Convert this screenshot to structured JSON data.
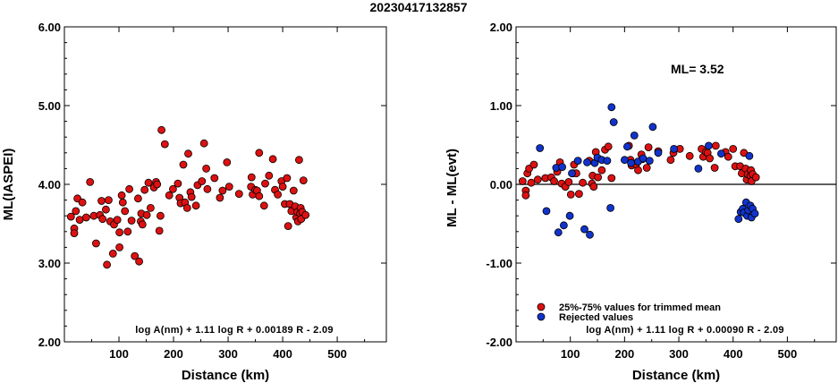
{
  "title": "20230417132857",
  "chart_data": [
    {
      "type": "scatter",
      "xlabel": "Distance (km)",
      "ylabel": "ML(IASPEI)",
      "xlim": [
        0,
        590
      ],
      "ylim": [
        2.0,
        6.0
      ],
      "xticks": [
        "100",
        "200",
        "300",
        "400",
        "500"
      ],
      "xtick_values": [
        100,
        200,
        300,
        400,
        500
      ],
      "yticks": [
        "2.00",
        "3.00",
        "4.00",
        "5.00",
        "6.00"
      ],
      "ytick_values": [
        2.0,
        3.0,
        4.0,
        5.0,
        6.0
      ],
      "grid": false,
      "annotation": "log A(nm) + 1.11 log R + 0.00189 R - 2.09",
      "series": [
        {
          "color": "#dd1111",
          "points": [
            [
              12,
              3.59
            ],
            [
              18,
              3.44
            ],
            [
              18,
              3.38
            ],
            [
              21,
              3.66
            ],
            [
              24,
              3.82
            ],
            [
              28,
              3.55
            ],
            [
              33,
              3.77
            ],
            [
              40,
              3.58
            ],
            [
              47,
              4.03
            ],
            [
              54,
              3.6
            ],
            [
              58,
              3.25
            ],
            [
              65,
              3.61
            ],
            [
              68,
              3.79
            ],
            [
              70,
              3.56
            ],
            [
              76,
              3.68
            ],
            [
              78,
              2.98
            ],
            [
              81,
              3.8
            ],
            [
              84,
              3.53
            ],
            [
              89,
              3.12
            ],
            [
              91,
              3.49
            ],
            [
              97,
              3.55
            ],
            [
              101,
              3.2
            ],
            [
              101,
              3.39
            ],
            [
              105,
              3.86
            ],
            [
              107,
              3.77
            ],
            [
              111,
              3.66
            ],
            [
              116,
              3.4
            ],
            [
              119,
              3.94
            ],
            [
              123,
              3.54
            ],
            [
              129,
              3.09
            ],
            [
              135,
              3.82
            ],
            [
              137,
              3.02
            ],
            [
              140,
              3.53
            ],
            [
              141,
              3.63
            ],
            [
              143,
              3.49
            ],
            [
              147,
              3.93
            ],
            [
              151,
              3.61
            ],
            [
              154,
              4.02
            ],
            [
              158,
              3.7
            ],
            [
              164,
              3.96
            ],
            [
              168,
              4.03
            ],
            [
              170,
              4.0
            ],
            [
              174,
              3.41
            ],
            [
              176,
              3.6
            ],
            [
              178,
              4.69
            ],
            [
              184,
              4.51
            ],
            [
              192,
              3.86
            ],
            [
              199,
              3.94
            ],
            [
              208,
              4.01
            ],
            [
              211,
              3.83
            ],
            [
              213,
              3.76
            ],
            [
              218,
              4.25
            ],
            [
              221,
              3.77
            ],
            [
              225,
              3.7
            ],
            [
              227,
              4.39
            ],
            [
              231,
              3.9
            ],
            [
              233,
              3.84
            ],
            [
              241,
              3.73
            ],
            [
              244,
              3.99
            ],
            [
              252,
              4.04
            ],
            [
              256,
              4.52
            ],
            [
              260,
              4.2
            ],
            [
              262,
              3.94
            ],
            [
              275,
              4.08
            ],
            [
              285,
              3.83
            ],
            [
              290,
              3.92
            ],
            [
              298,
              4.28
            ],
            [
              302,
              3.97
            ],
            [
              320,
              3.88
            ],
            [
              342,
              3.97
            ],
            [
              343,
              4.09
            ],
            [
              345,
              3.87
            ],
            [
              350,
              3.93
            ],
            [
              353,
              3.92
            ],
            [
              357,
              3.85
            ],
            [
              357,
              4.4
            ],
            [
              366,
              3.73
            ],
            [
              368,
              4.01
            ],
            [
              375,
              4.11
            ],
            [
              382,
              4.32
            ],
            [
              386,
              3.93
            ],
            [
              391,
              3.87
            ],
            [
              398,
              4.04
            ],
            [
              400,
              3.97
            ],
            [
              404,
              3.75
            ],
            [
              408,
              4.08
            ],
            [
              410,
              3.47
            ],
            [
              413,
              3.75
            ],
            [
              416,
              3.66
            ],
            [
              420,
              3.92
            ],
            [
              423,
              3.72
            ],
            [
              425,
              3.58
            ],
            [
              427,
              3.65
            ],
            [
              428,
              3.53
            ],
            [
              430,
              4.31
            ],
            [
              432,
              3.63
            ],
            [
              433,
              3.7
            ],
            [
              434,
              3.56
            ],
            [
              436,
              3.65
            ],
            [
              438,
              4.05
            ],
            [
              442,
              3.61
            ]
          ]
        }
      ]
    },
    {
      "type": "scatter",
      "xlabel": "Distance (km)",
      "ylabel": "ML - ML(evt)",
      "xlim": [
        0,
        590
      ],
      "ylim": [
        -2.0,
        2.0
      ],
      "xticks": [
        "100",
        "200",
        "300",
        "400",
        "500"
      ],
      "xtick_values": [
        100,
        200,
        300,
        400,
        500
      ],
      "yticks": [
        "-2.00",
        "-1.00",
        "0.00",
        "1.00",
        "2.00"
      ],
      "ytick_values": [
        -2.0,
        -1.0,
        0.0,
        1.0,
        2.0
      ],
      "zero_line": 0.0,
      "grid": false,
      "ml_label": "ML= 3.52",
      "annotation": "log A(nm) + 1.11 log R + 0.00090 R - 2.09",
      "legend": {
        "placement": "bottom-left",
        "entries": [
          {
            "label": "25%-75% values for trimmed mean",
            "color": "#dd1111"
          },
          {
            "label": "Rejected values",
            "color": "#1133cc"
          }
        ]
      },
      "series": [
        {
          "name": "25%-75% values for trimmed mean",
          "color": "#dd1111",
          "points": [
            [
              12,
              0.04
            ],
            [
              18,
              -0.08
            ],
            [
              18,
              -0.14
            ],
            [
              21,
              0.14
            ],
            [
              24,
              0.2
            ],
            [
              28,
              0.02
            ],
            [
              33,
              0.25
            ],
            [
              40,
              0.06
            ],
            [
              54,
              0.08
            ],
            [
              65,
              0.09
            ],
            [
              70,
              0.04
            ],
            [
              76,
              0.16
            ],
            [
              81,
              0.28
            ],
            [
              84,
              0.01
            ],
            [
              91,
              -0.03
            ],
            [
              97,
              0.03
            ],
            [
              101,
              -0.13
            ],
            [
              105,
              0.14
            ],
            [
              107,
              0.25
            ],
            [
              111,
              0.14
            ],
            [
              116,
              -0.12
            ],
            [
              123,
              0.02
            ],
            [
              135,
              0.3
            ],
            [
              140,
              0.01
            ],
            [
              141,
              0.11
            ],
            [
              143,
              -0.03
            ],
            [
              147,
              0.41
            ],
            [
              151,
              0.09
            ],
            [
              158,
              0.18
            ],
            [
              164,
              0.44
            ],
            [
              170,
              0.48
            ],
            [
              176,
              0.08
            ],
            [
              208,
              0.49
            ],
            [
              211,
              0.31
            ],
            [
              213,
              0.24
            ],
            [
              221,
              0.25
            ],
            [
              225,
              0.18
            ],
            [
              231,
              0.38
            ],
            [
              233,
              0.32
            ],
            [
              241,
              0.21
            ],
            [
              244,
              0.47
            ],
            [
              262,
              0.42
            ],
            [
              285,
              0.31
            ],
            [
              290,
              0.4
            ],
            [
              302,
              0.45
            ],
            [
              320,
              0.36
            ],
            [
              342,
              0.45
            ],
            [
              345,
              0.35
            ],
            [
              350,
              0.41
            ],
            [
              353,
              0.4
            ],
            [
              357,
              0.33
            ],
            [
              366,
              0.21
            ],
            [
              368,
              0.49
            ],
            [
              386,
              0.41
            ],
            [
              391,
              0.35
            ],
            [
              400,
              0.45
            ],
            [
              404,
              0.23
            ],
            [
              413,
              0.23
            ],
            [
              416,
              0.14
            ],
            [
              420,
              0.4
            ],
            [
              423,
              0.2
            ],
            [
              425,
              0.06
            ],
            [
              427,
              0.13
            ],
            [
              432,
              0.11
            ],
            [
              433,
              0.18
            ],
            [
              434,
              0.04
            ],
            [
              436,
              0.13
            ],
            [
              442,
              0.09
            ]
          ]
        },
        {
          "name": "Rejected values",
          "color": "#1133cc",
          "points": [
            [
              44,
              0.46
            ],
            [
              56,
              -0.34
            ],
            [
              74,
              0.21
            ],
            [
              78,
              -0.61
            ],
            [
              85,
              0.22
            ],
            [
              88,
              -0.52
            ],
            [
              99,
              -0.4
            ],
            [
              103,
              0.14
            ],
            [
              114,
              0.3
            ],
            [
              126,
              -0.57
            ],
            [
              131,
              0.28
            ],
            [
              136,
              -0.64
            ],
            [
              145,
              0.27
            ],
            [
              150,
              0.34
            ],
            [
              158,
              0.31
            ],
            [
              168,
              0.3
            ],
            [
              174,
              -0.3
            ],
            [
              176,
              0.98
            ],
            [
              180,
              0.79
            ],
            [
              200,
              0.31
            ],
            [
              205,
              0.48
            ],
            [
              212,
              0.27
            ],
            [
              218,
              0.62
            ],
            [
              225,
              0.29
            ],
            [
              234,
              0.33
            ],
            [
              246,
              0.3
            ],
            [
              252,
              0.73
            ],
            [
              262,
              0.4
            ],
            [
              291,
              0.45
            ],
            [
              336,
              0.2
            ],
            [
              355,
              0.49
            ],
            [
              378,
              0.39
            ],
            [
              410,
              -0.44
            ],
            [
              414,
              -0.35
            ],
            [
              418,
              -0.31
            ],
            [
              420,
              -0.36
            ],
            [
              424,
              -0.23
            ],
            [
              426,
              -0.4
            ],
            [
              428,
              -0.33
            ],
            [
              430,
              0.36
            ],
            [
              432,
              -0.27
            ],
            [
              434,
              -0.42
            ],
            [
              436,
              -0.31
            ],
            [
              440,
              -0.37
            ]
          ]
        }
      ]
    }
  ]
}
